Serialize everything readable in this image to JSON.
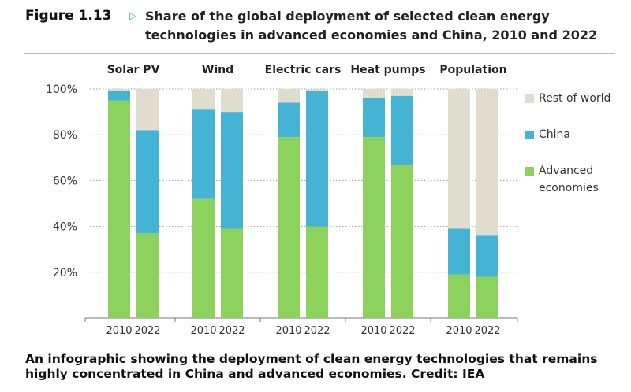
{
  "figure": {
    "label": "Figure 1.13",
    "title": "Share of the global deployment of selected clean energy technologies in advanced economies and China, 2010 and 2022"
  },
  "caption": "An infographic showing the deployment of clean energy technologies that remains highly concentrated in China and advanced economies. Credit: IEA",
  "colors": {
    "advanced": "#8cd25c",
    "china": "#45b3d4",
    "rest": "#e0ddcf",
    "accent": "#2a9fd6"
  },
  "legend": {
    "rest": "Rest of world",
    "china": "China",
    "advanced": "Advanced economies"
  },
  "chart_data": {
    "type": "bar",
    "stacked": true,
    "groups": [
      "Solar PV",
      "Wind",
      "Electric cars",
      "Heat pumps",
      "Population"
    ],
    "years": [
      "2010",
      "2022"
    ],
    "ylim": [
      0,
      100
    ],
    "y_ticks": [
      "20%",
      "40%",
      "60%",
      "80%",
      "100%"
    ],
    "y_tick_values": [
      20,
      40,
      60,
      80,
      100
    ],
    "gridlines": "dotted",
    "legend_position": "right",
    "series": [
      {
        "name": "Advanced economies",
        "key": "advanced",
        "values": [
          [
            95,
            37
          ],
          [
            52,
            39
          ],
          [
            79,
            40
          ],
          [
            79,
            67
          ],
          [
            19,
            18
          ]
        ]
      },
      {
        "name": "China",
        "key": "china",
        "values": [
          [
            4,
            45
          ],
          [
            39,
            51
          ],
          [
            15,
            59
          ],
          [
            17,
            30
          ],
          [
            20,
            18
          ]
        ]
      },
      {
        "name": "Rest of world",
        "key": "rest",
        "values": [
          [
            1,
            18
          ],
          [
            9,
            10
          ],
          [
            6,
            1
          ],
          [
            4,
            3
          ],
          [
            61,
            64
          ]
        ]
      }
    ]
  }
}
